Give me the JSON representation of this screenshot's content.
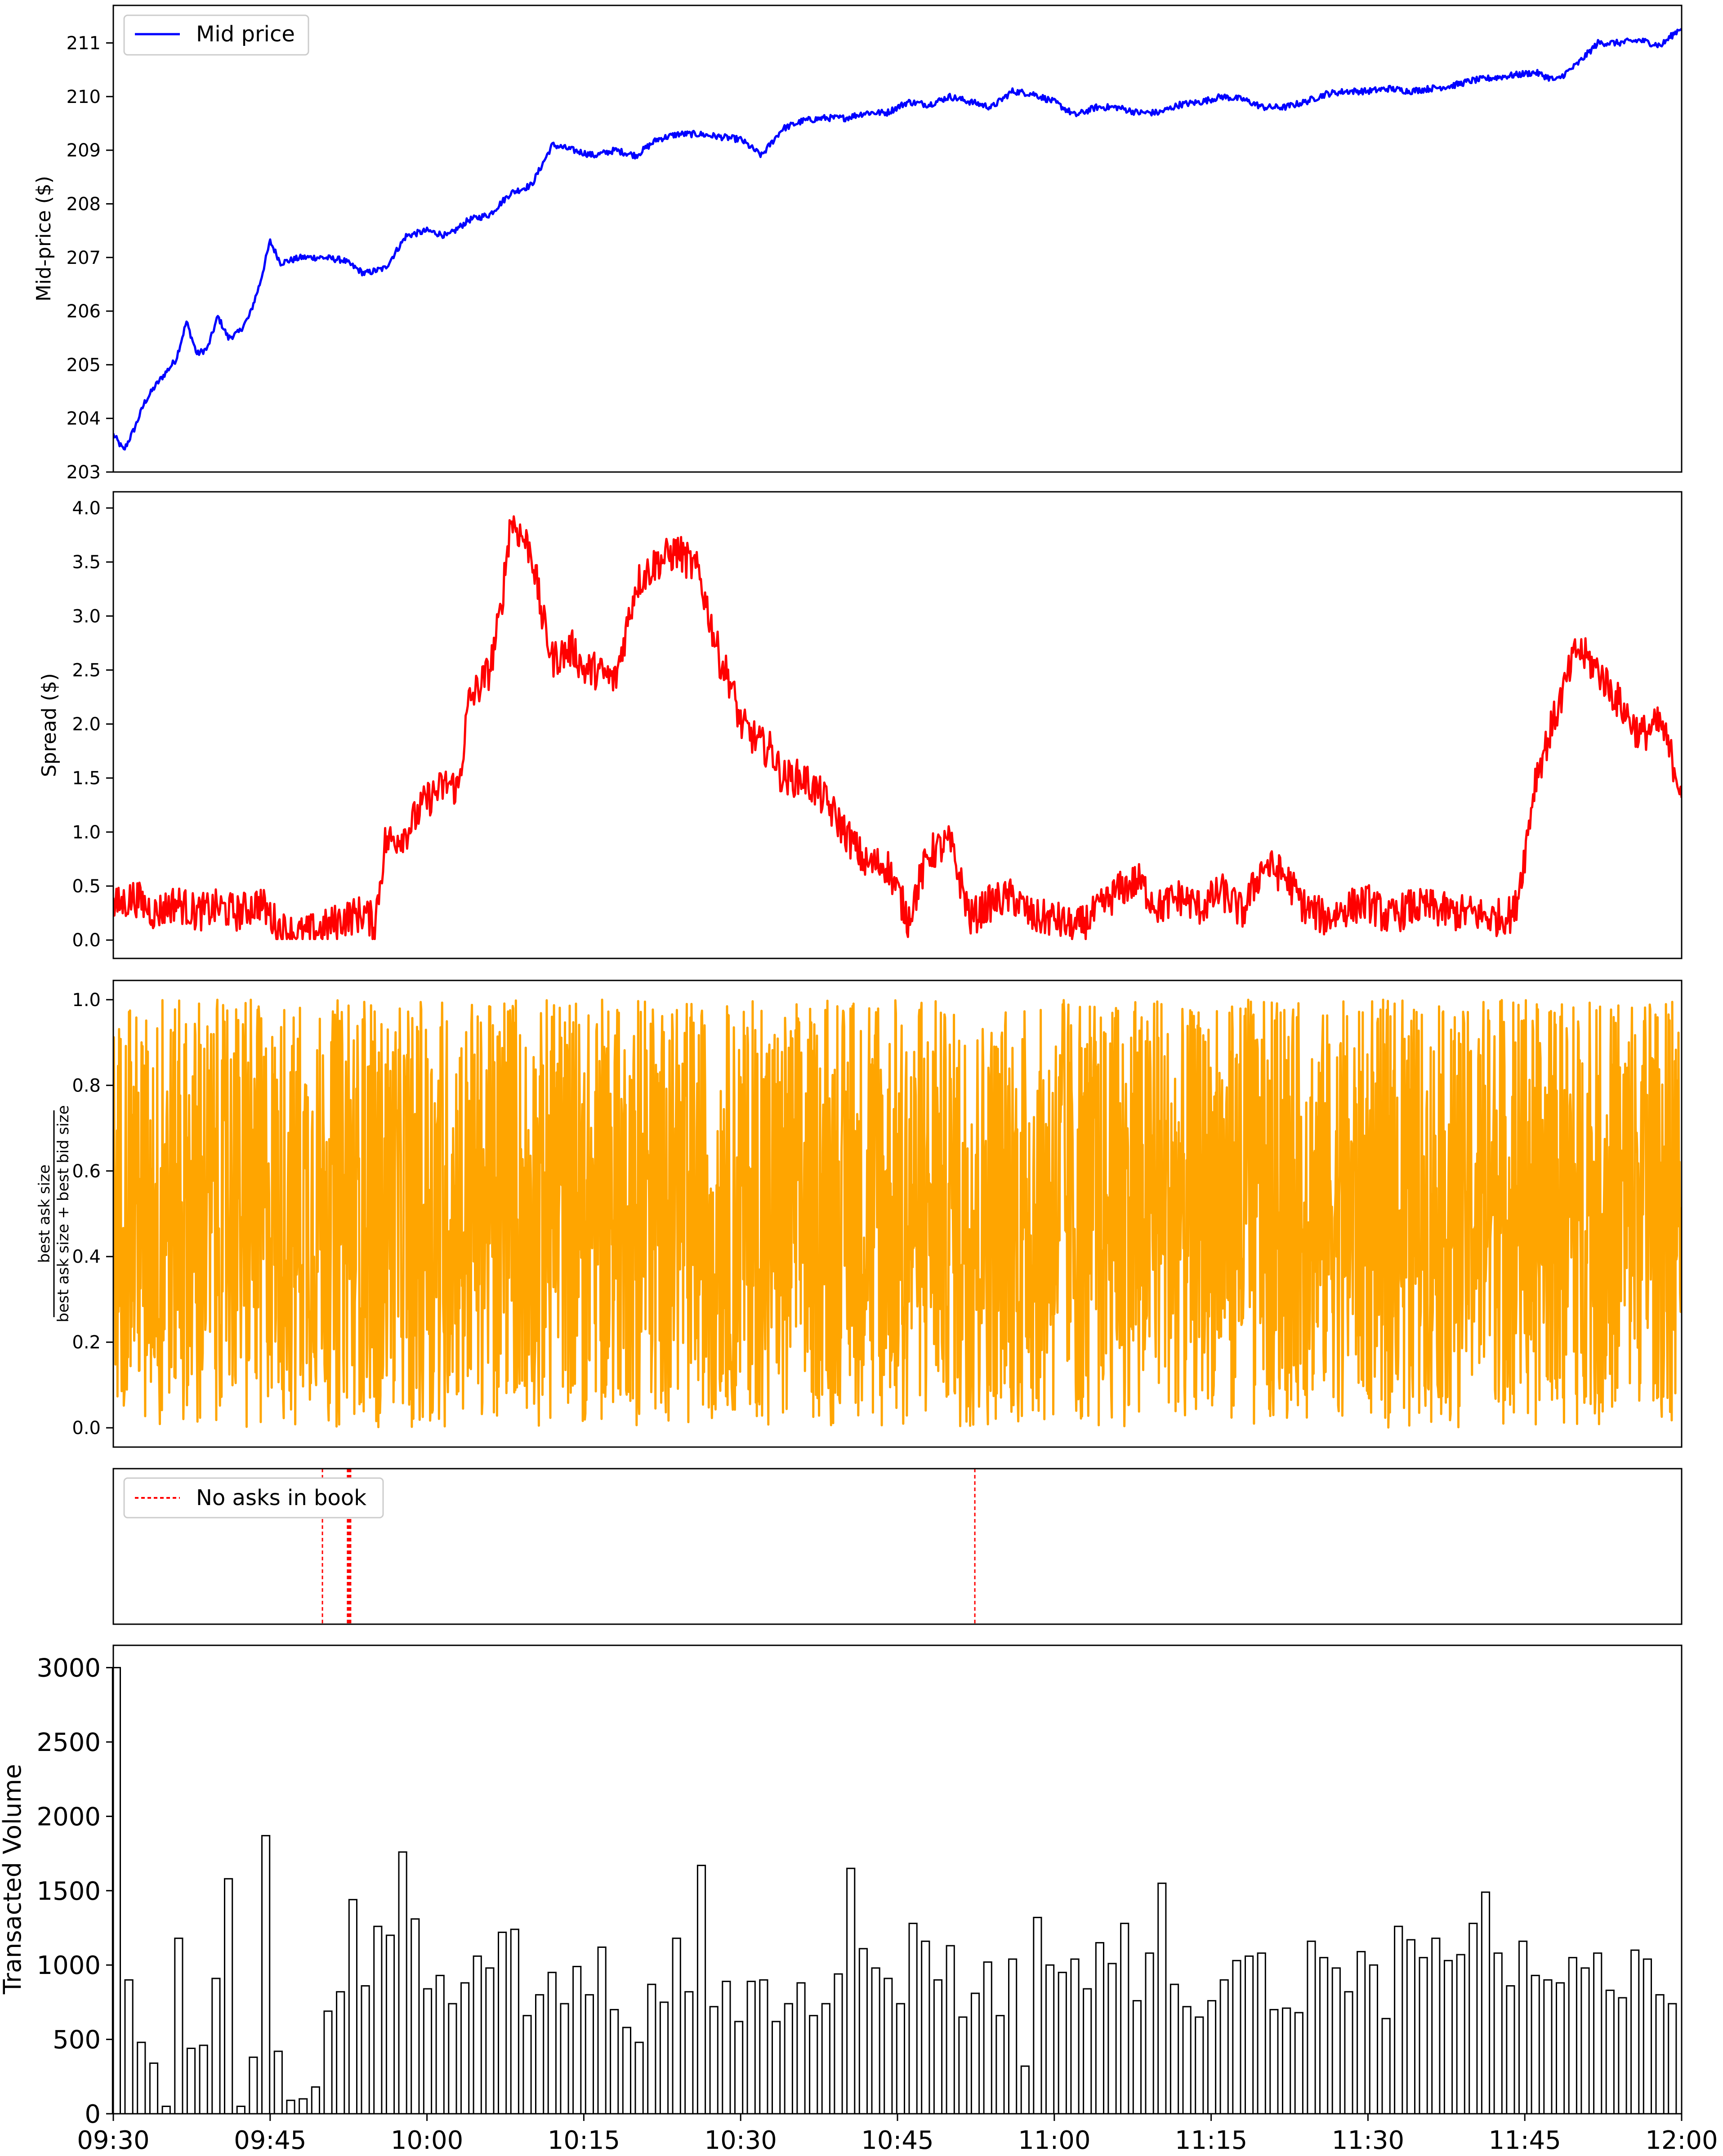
{
  "chart_data": [
    {
      "id": "mid",
      "type": "line",
      "ylabel": "Mid-price ($)",
      "ylim": [
        203,
        211.7
      ],
      "yticks": [
        203,
        204,
        205,
        206,
        207,
        208,
        209,
        210,
        211
      ],
      "x_range": [
        "09:30",
        "12:00"
      ],
      "legend": {
        "label": "Mid price",
        "position": "top-left"
      },
      "color": "#0000ff",
      "series": [
        {
          "name": "Mid price",
          "x_minutes": [
            0,
            1,
            2,
            3,
            4,
            6,
            7,
            8,
            9,
            10,
            11,
            12,
            13,
            14,
            15,
            16,
            17,
            18,
            20,
            22,
            24,
            26,
            28,
            30,
            32,
            34,
            36,
            38,
            40,
            42,
            44,
            46,
            48,
            50,
            52,
            54,
            56,
            58,
            60,
            62,
            64,
            66,
            68,
            70,
            72,
            74,
            76,
            78,
            80,
            82,
            84,
            86,
            88,
            90,
            92,
            94,
            96,
            98,
            100,
            102,
            104,
            106,
            108,
            110,
            112,
            114,
            116,
            118,
            120,
            122,
            124,
            126,
            128,
            130,
            132,
            134,
            136,
            138,
            140,
            142,
            144,
            146,
            148,
            150
          ],
          "values": [
            203.7,
            203.4,
            203.8,
            204.3,
            204.6,
            205.1,
            205.8,
            205.2,
            205.3,
            205.9,
            205.5,
            205.6,
            205.9,
            206.5,
            207.3,
            206.9,
            206.95,
            207.0,
            207.0,
            206.95,
            206.7,
            206.8,
            207.4,
            207.5,
            207.4,
            207.7,
            207.8,
            208.2,
            208.35,
            209.1,
            209.0,
            208.9,
            209.0,
            208.9,
            209.2,
            209.3,
            209.3,
            209.25,
            209.2,
            208.9,
            209.4,
            209.55,
            209.6,
            209.6,
            209.7,
            209.7,
            209.9,
            209.85,
            210.0,
            209.9,
            209.8,
            210.1,
            210.05,
            209.9,
            209.65,
            209.8,
            209.8,
            209.7,
            209.7,
            209.85,
            209.9,
            210.0,
            209.95,
            209.8,
            209.8,
            209.9,
            210.05,
            210.1,
            210.1,
            210.15,
            210.1,
            210.15,
            210.2,
            210.3,
            210.35,
            210.4,
            210.45,
            210.3,
            210.6,
            211.0,
            211.0,
            211.05,
            210.95,
            211.3
          ]
        }
      ]
    },
    {
      "id": "spread",
      "type": "line",
      "ylabel": "Spread ($)",
      "ylim": [
        -0.17,
        4.15
      ],
      "yticks": [
        0.0,
        0.5,
        1.0,
        1.5,
        2.0,
        2.5,
        3.0,
        3.5,
        4.0
      ],
      "color": "#ff0000",
      "series": [
        {
          "name": "",
          "x_minutes": [
            0,
            2,
            4,
            6,
            8,
            10,
            12,
            14,
            16,
            18,
            20,
            22,
            24,
            25,
            26,
            28,
            30,
            32,
            33,
            34,
            36,
            37,
            38,
            40,
            41,
            42,
            44,
            45,
            46,
            48,
            50,
            52,
            54,
            56,
            58,
            59,
            60,
            62,
            63,
            64,
            66,
            68,
            70,
            72,
            74,
            76,
            78,
            80,
            82,
            84,
            86,
            88,
            90,
            92,
            94,
            96,
            98,
            100,
            102,
            104,
            106,
            108,
            110,
            112,
            114,
            116,
            118,
            120,
            122,
            124,
            126,
            128,
            130,
            132,
            134,
            135,
            136,
            138,
            140,
            142,
            144,
            146,
            148,
            150
          ],
          "values": [
            0.3,
            0.4,
            0.25,
            0.35,
            0.25,
            0.3,
            0.25,
            0.35,
            0.1,
            0.05,
            0.1,
            0.2,
            0.25,
            0.15,
            0.9,
            1.0,
            1.3,
            1.45,
            1.4,
            2.2,
            2.5,
            3.0,
            3.9,
            3.6,
            3.0,
            2.6,
            2.7,
            2.5,
            2.5,
            2.4,
            3.3,
            3.5,
            3.6,
            3.4,
            2.6,
            2.4,
            2.0,
            1.8,
            1.75,
            1.5,
            1.5,
            1.3,
            1.0,
            0.7,
            0.7,
            0.2,
            0.8,
            0.9,
            0.2,
            0.35,
            0.4,
            0.2,
            0.2,
            0.1,
            0.25,
            0.45,
            0.55,
            0.3,
            0.4,
            0.3,
            0.45,
            0.25,
            0.7,
            0.6,
            0.3,
            0.2,
            0.3,
            0.35,
            0.2,
            0.3,
            0.3,
            0.25,
            0.25,
            0.2,
            0.25,
            0.8,
            1.5,
            2.1,
            2.7,
            2.5,
            2.2,
            1.9,
            2.0,
            1.4
          ]
        }
      ]
    },
    {
      "id": "imbalance",
      "type": "line",
      "ylabel_numerator": "best ask size",
      "ylabel_denominator": "best ask size + best bid size",
      "ylim": [
        -0.045,
        1.045
      ],
      "yticks": [
        0.0,
        0.2,
        0.4,
        0.6,
        0.8,
        1.0
      ],
      "color": "#ffa500",
      "band_low": 0.05,
      "band_high": 0.98
    },
    {
      "id": "no_asks",
      "type": "line",
      "legend": {
        "label": "No asks in book",
        "position": "top-left"
      },
      "color": "#ff0000",
      "event_x_minutes": [
        20.0,
        22.4,
        22.5,
        22.6,
        22.7,
        82.4
      ]
    },
    {
      "id": "volume",
      "type": "bar",
      "ylabel": "Transacted Volume",
      "ylim": [
        0,
        3150
      ],
      "yticks": [
        0,
        500,
        1000,
        1500,
        2000,
        2500,
        3000
      ],
      "xticks": [
        "09:30",
        "09:45",
        "10:00",
        "10:15",
        "10:30",
        "10:45",
        "11:00",
        "11:15",
        "11:30",
        "11:45",
        "12:00"
      ],
      "bar_width_minutes": 0.5,
      "values": [
        3000,
        900,
        480,
        340,
        50,
        1180,
        440,
        460,
        910,
        1580,
        50,
        380,
        1870,
        420,
        90,
        100,
        180,
        690,
        820,
        1440,
        860,
        1260,
        1200,
        1760,
        1310,
        840,
        930,
        740,
        880,
        1060,
        980,
        1220,
        1240,
        660,
        800,
        950,
        740,
        990,
        800,
        1120,
        700,
        580,
        480,
        870,
        750,
        1180,
        820,
        1670,
        720,
        890,
        620,
        890,
        900,
        620,
        740,
        880,
        660,
        740,
        940,
        1650,
        1110,
        980,
        910,
        740,
        1280,
        1160,
        900,
        1130,
        650,
        810,
        1020,
        660,
        1040,
        320,
        1320,
        1000,
        950,
        1040,
        840,
        1150,
        1010,
        1280,
        760,
        1080,
        1550,
        870,
        720,
        650,
        760,
        900,
        1030,
        1060,
        1080,
        700,
        710,
        680,
        1160,
        1050,
        980,
        820,
        1090,
        1000,
        640,
        1260,
        1170,
        1050,
        1180,
        1030,
        1070,
        1280,
        1490,
        1080,
        860,
        1160,
        930,
        900,
        880,
        1050,
        980,
        1080,
        830,
        780,
        1100,
        1040,
        800,
        740
      ]
    }
  ]
}
